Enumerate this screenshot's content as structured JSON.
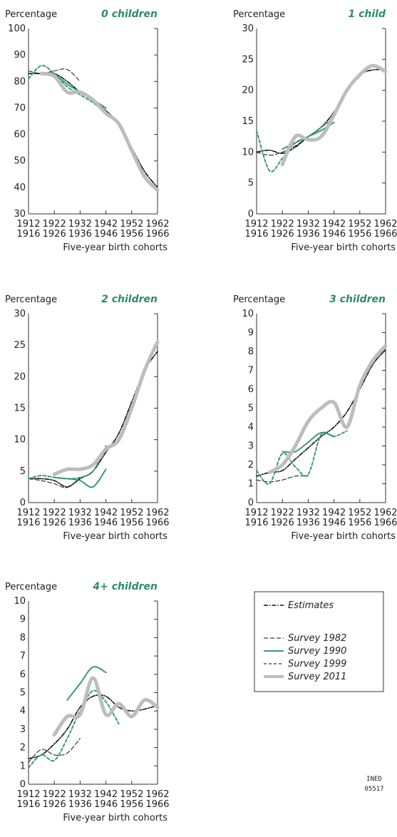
{
  "chart_data": [
    {
      "type": "line",
      "title": "0 children",
      "ylabel": "Percentage",
      "xlabel": "Five-year birth cohorts",
      "x": [
        1912,
        1917,
        1922,
        1927,
        1932,
        1937,
        1942,
        1947,
        1952,
        1957,
        1962
      ],
      "xlim": [
        1912,
        1962
      ],
      "xticks": [
        {
          "value": 1912,
          "label": "1912\n1916"
        },
        {
          "value": 1922,
          "label": "1922\n1926"
        },
        {
          "value": 1932,
          "label": "1932\n1936"
        },
        {
          "value": 1942,
          "label": "1942\n1946"
        },
        {
          "value": 1952,
          "label": "1952\n1956"
        },
        {
          "value": 1962,
          "label": "1962\n1966"
        }
      ],
      "ylim": [
        30,
        100
      ],
      "yticks": [
        30,
        40,
        50,
        60,
        70,
        80,
        90,
        100
      ],
      "series": [
        {
          "name": "Estimates",
          "color": "#111111",
          "style": "dashdot",
          "values": [
            83,
            83,
            83,
            80,
            76,
            73,
            69,
            64,
            55,
            46,
            40
          ]
        },
        {
          "name": "Survey 1982",
          "color": "#111111",
          "style": "dashed",
          "values": [
            84,
            83,
            84,
            84.5,
            80,
            null,
            null,
            null,
            null,
            null,
            null
          ]
        },
        {
          "name": "Survey 1990",
          "color": "#3a9a7a",
          "style": "solid",
          "values": [
            null,
            null,
            83,
            79,
            76,
            73,
            70,
            null,
            null,
            null,
            null
          ]
        },
        {
          "name": "Survey 1999",
          "color": "#3a9a7a",
          "style": "dotted",
          "values": [
            81,
            86,
            83,
            78,
            75,
            72,
            68,
            null,
            null,
            null,
            null
          ]
        },
        {
          "name": "Survey 2011",
          "color": "#bdbdbd",
          "style": "thick",
          "values": [
            null,
            83,
            82,
            76,
            76,
            73,
            68,
            64,
            54,
            44,
            39
          ]
        }
      ]
    },
    {
      "type": "line",
      "title": "1 child",
      "ylabel": "Percentage",
      "xlabel": "Five-year birth cohorts",
      "x": [
        1912,
        1917,
        1922,
        1927,
        1932,
        1937,
        1942,
        1947,
        1952,
        1957,
        1962
      ],
      "xlim": [
        1912,
        1962
      ],
      "xticks": [
        {
          "value": 1912,
          "label": "1912\n1916"
        },
        {
          "value": 1922,
          "label": "1922\n1926"
        },
        {
          "value": 1932,
          "label": "1932\n1936"
        },
        {
          "value": 1942,
          "label": "1942\n1946"
        },
        {
          "value": 1952,
          "label": "1952\n1956"
        },
        {
          "value": 1962,
          "label": "1962\n1966"
        }
      ],
      "ylim": [
        0,
        30
      ],
      "yticks": [
        0,
        5,
        10,
        15,
        20,
        25,
        30
      ],
      "series": [
        {
          "name": "Estimates",
          "color": "#111111",
          "style": "dashdot",
          "values": [
            10,
            10.3,
            9.8,
            10.8,
            12.5,
            14,
            16.5,
            20,
            22.5,
            23.3,
            23.3
          ]
        },
        {
          "name": "Survey 1982",
          "color": "#111111",
          "style": "dashed",
          "values": [
            10,
            9.5,
            10,
            11,
            12.5,
            null,
            null,
            null,
            null,
            null,
            null
          ]
        },
        {
          "name": "Survey 1990",
          "color": "#3a9a7a",
          "style": "solid",
          "values": [
            null,
            null,
            10.5,
            11.5,
            12.5,
            13.5,
            14.8,
            null,
            null,
            null,
            null
          ]
        },
        {
          "name": "Survey 1999",
          "color": "#3a9a7a",
          "style": "dotted",
          "values": [
            13.5,
            7,
            9,
            11.5,
            12.5,
            14,
            15.5,
            null,
            null,
            null,
            null
          ]
        },
        {
          "name": "Survey 2011",
          "color": "#bdbdbd",
          "style": "thick",
          "values": [
            null,
            null,
            8,
            12.5,
            12,
            12.5,
            16,
            20,
            22.5,
            24,
            23
          ]
        }
      ]
    },
    {
      "type": "line",
      "title": "2 children",
      "ylabel": "Percentage",
      "xlabel": "Five-year birth cohorts",
      "x": [
        1912,
        1917,
        1922,
        1927,
        1932,
        1937,
        1942,
        1947,
        1952,
        1957,
        1962
      ],
      "xlim": [
        1912,
        1962
      ],
      "xticks": [
        {
          "value": 1912,
          "label": "1912\n1916"
        },
        {
          "value": 1922,
          "label": "1922\n1926"
        },
        {
          "value": 1932,
          "label": "1932\n1936"
        },
        {
          "value": 1942,
          "label": "1942\n1946"
        },
        {
          "value": 1952,
          "label": "1952\n1956"
        },
        {
          "value": 1962,
          "label": "1962\n1966"
        }
      ],
      "ylim": [
        0,
        30
      ],
      "yticks": [
        0,
        5,
        10,
        15,
        20,
        25,
        30
      ],
      "series": [
        {
          "name": "Estimates",
          "color": "#111111",
          "style": "dashdot",
          "values": [
            3.8,
            3.8,
            3.5,
            2.5,
            3.8,
            5,
            8,
            11,
            16,
            21,
            24
          ]
        },
        {
          "name": "Survey 1982",
          "color": "#111111",
          "style": "dashed",
          "values": [
            3.8,
            3.5,
            3,
            2.4,
            4,
            null,
            null,
            null,
            null,
            null,
            null
          ]
        },
        {
          "name": "Survey 1990",
          "color": "#3a9a7a",
          "style": "solid",
          "values": [
            null,
            null,
            4,
            3.8,
            3.5,
            2.5,
            5.3,
            null,
            null,
            null,
            null
          ]
        },
        {
          "name": "Survey 1999",
          "color": "#3a9a7a",
          "style": "dotted",
          "values": [
            3.8,
            4.3,
            4,
            3.8,
            4,
            5,
            9,
            null,
            null,
            null,
            null
          ]
        },
        {
          "name": "Survey 2011",
          "color": "#bdbdbd",
          "style": "thick",
          "values": [
            null,
            null,
            4.5,
            5.3,
            5.3,
            6,
            8.5,
            10,
            15,
            21,
            25.5
          ]
        }
      ]
    },
    {
      "type": "line",
      "title": "3 children",
      "ylabel": "Percentage",
      "xlabel": "Five-year birth cohorts",
      "x": [
        1912,
        1917,
        1922,
        1927,
        1932,
        1937,
        1942,
        1947,
        1952,
        1957,
        1962
      ],
      "xlim": [
        1912,
        1962
      ],
      "xticks": [
        {
          "value": 1912,
          "label": "1912\n1916"
        },
        {
          "value": 1922,
          "label": "1922\n1926"
        },
        {
          "value": 1932,
          "label": "1932\n1936"
        },
        {
          "value": 1942,
          "label": "1942\n1946"
        },
        {
          "value": 1952,
          "label": "1952\n1956"
        },
        {
          "value": 1962,
          "label": "1962\n1966"
        }
      ],
      "ylim": [
        0,
        10
      ],
      "yticks": [
        0,
        1,
        2,
        3,
        4,
        5,
        6,
        7,
        8,
        9,
        10
      ],
      "series": [
        {
          "name": "Estimates",
          "color": "#111111",
          "style": "dashdot",
          "values": [
            1.4,
            1.6,
            1.7,
            2.3,
            2.9,
            3.5,
            4,
            4.8,
            6,
            7.3,
            8.1
          ]
        },
        {
          "name": "Survey 1982",
          "color": "#111111",
          "style": "dashed",
          "values": [
            1.2,
            1.1,
            1.2,
            1.4,
            1.4,
            null,
            null,
            null,
            null,
            null,
            null
          ]
        },
        {
          "name": "Survey 1990",
          "color": "#3a9a7a",
          "style": "solid",
          "values": [
            null,
            null,
            2.7,
            2.7,
            3.2,
            3.7,
            3.5,
            null,
            null,
            null,
            null
          ]
        },
        {
          "name": "Survey 1999",
          "color": "#3a9a7a",
          "style": "dotted",
          "values": [
            1.7,
            1,
            2.6,
            1.9,
            1.5,
            3.6,
            3.5,
            3.8,
            null,
            null,
            null
          ]
        },
        {
          "name": "Survey 2011",
          "color": "#bdbdbd",
          "style": "thick",
          "values": [
            null,
            1.6,
            2,
            3,
            4.3,
            5,
            5.3,
            4,
            6.2,
            7.5,
            8.3
          ]
        }
      ]
    },
    {
      "type": "line",
      "title": "4+ children",
      "ylabel": "Percentage",
      "xlabel": "Five-year birth cohorts",
      "x": [
        1912,
        1917,
        1922,
        1927,
        1932,
        1937,
        1942,
        1947,
        1952,
        1957,
        1962
      ],
      "xlim": [
        1912,
        1962
      ],
      "xticks": [
        {
          "value": 1912,
          "label": "1912\n1916"
        },
        {
          "value": 1922,
          "label": "1922\n1926"
        },
        {
          "value": 1932,
          "label": "1932\n1936"
        },
        {
          "value": 1942,
          "label": "1942\n1946"
        },
        {
          "value": 1952,
          "label": "1952\n1956"
        },
        {
          "value": 1962,
          "label": "1962\n1966"
        }
      ],
      "ylim": [
        0,
        10
      ],
      "yticks": [
        0,
        1,
        2,
        3,
        4,
        5,
        6,
        7,
        8,
        9,
        10
      ],
      "series": [
        {
          "name": "Estimates",
          "color": "#111111",
          "style": "dashdot",
          "values": [
            1.4,
            1.6,
            2.2,
            3,
            4.2,
            4.8,
            4.8,
            4.2,
            4,
            4.1,
            4.3
          ]
        },
        {
          "name": "Survey 1982",
          "color": "#111111",
          "style": "dashed",
          "values": [
            1.2,
            1.9,
            1.6,
            1.7,
            2.5,
            null,
            null,
            null,
            null,
            null,
            null
          ]
        },
        {
          "name": "Survey 1990",
          "color": "#3a9a7a",
          "style": "solid",
          "values": [
            null,
            null,
            null,
            4.6,
            5.5,
            6.4,
            6.1,
            null,
            null,
            null,
            null
          ]
        },
        {
          "name": "Survey 1999",
          "color": "#3a9a7a",
          "style": "dotted",
          "values": [
            0.9,
            1.6,
            1.3,
            2.5,
            4,
            5.1,
            4.5,
            3.3,
            null,
            null,
            null
          ]
        },
        {
          "name": "Survey 2011",
          "color": "#bdbdbd",
          "style": "thick",
          "values": [
            null,
            null,
            2.7,
            3.7,
            3.8,
            5.8,
            3.8,
            4.4,
            3.7,
            4.6,
            4.2
          ]
        }
      ]
    }
  ],
  "credit": "INED\n05517"
}
